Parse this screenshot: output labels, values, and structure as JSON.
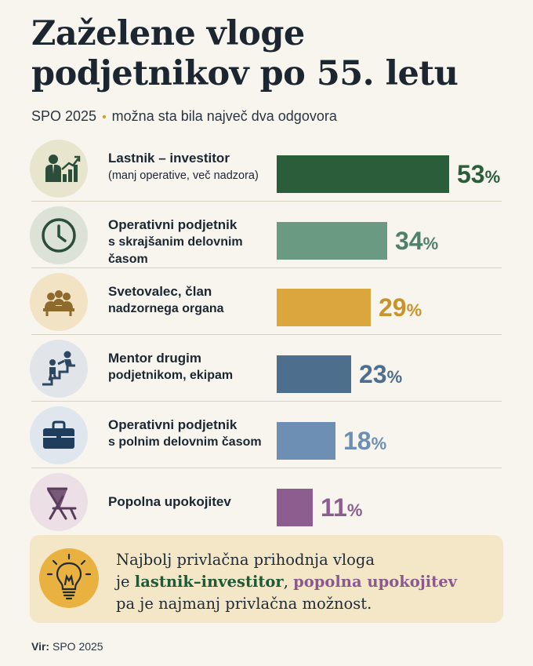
{
  "title": "Zaželene vloge podjetnikov po 55. letu",
  "subtitle": {
    "source": "SPO 2025",
    "bullet": "•",
    "note": "možna sta bila največ dva odgovora"
  },
  "chart_data": {
    "type": "bar",
    "orientation": "horizontal",
    "title": "Zaželene vloge podjetnikov po 55. letu",
    "unit": "%",
    "xlim": [
      0,
      53
    ],
    "categories": [
      "Lastnik – investitor (manj operative, več nadzora)",
      "Operativni podjetnik s skrajšanim delovnim časom",
      "Svetovalec, član nadzornega organa",
      "Mentor drugim podjetnikom, ekipam",
      "Operativni podjetnik s polnim delovnim časom",
      "Popolna upokojitev"
    ],
    "values": [
      53,
      34,
      29,
      23,
      18,
      11
    ],
    "rows": [
      {
        "line1": "Lastnik – investitor",
        "line2": "(manj operative, več nadzora)",
        "line2_bold": false,
        "value": 53,
        "color": "#2a5e3b",
        "icon": "investor-growth-icon",
        "icon_bg": "#e8e5cf"
      },
      {
        "line1": "Operativni podjetnik",
        "line2": "s skrajšanim delovnim časom",
        "line2_bold": true,
        "value": 34,
        "color": "#6a9a82",
        "icon": "clock-icon",
        "icon_bg": "#dce3d6"
      },
      {
        "line1": "Svetovalec, član",
        "line2": "nadzornega organa",
        "line2_bold": true,
        "value": 29,
        "color": "#dca63e",
        "icon": "meeting-group-icon",
        "icon_bg": "#f2e3c4"
      },
      {
        "line1": "Mentor drugim",
        "line2": "podjetnikom, ekipam",
        "line2_bold": true,
        "value": 23,
        "color": "#4d6e8c",
        "icon": "mentor-stairs-icon",
        "icon_bg": "#e1e5ea"
      },
      {
        "line1": "Operativni podjetnik",
        "line2": "s polnim delovnim časom",
        "line2_bold": true,
        "value": 18,
        "color": "#6c8fb3",
        "icon": "briefcase-icon",
        "icon_bg": "#dfe6ee"
      },
      {
        "line1": "Popolna upokojitev",
        "line2": "",
        "line2_bold": false,
        "value": 11,
        "color": "#8b5e8f",
        "icon": "deck-chair-icon",
        "icon_bg": "#ece0e6"
      }
    ],
    "value_labels": [
      "53",
      "34",
      "29",
      "23",
      "18",
      "11"
    ],
    "pct_sign": "%"
  },
  "callout": {
    "icon": "lightbulb-icon",
    "line1": "Najbolj privlačna prihodnja vloga",
    "line2_prefix": "je",
    "highlight1": "lastnik–investitor",
    "separator": ",",
    "highlight2": "popolna upokojitev",
    "line3": "pa je najmanj privlačna možnost.",
    "colors": {
      "highlight1": "#1f5a36",
      "highlight2": "#8a5a8e",
      "background": "#f4e7c8"
    }
  },
  "footer": {
    "label": "Vir:",
    "source": "SPO 2025"
  }
}
